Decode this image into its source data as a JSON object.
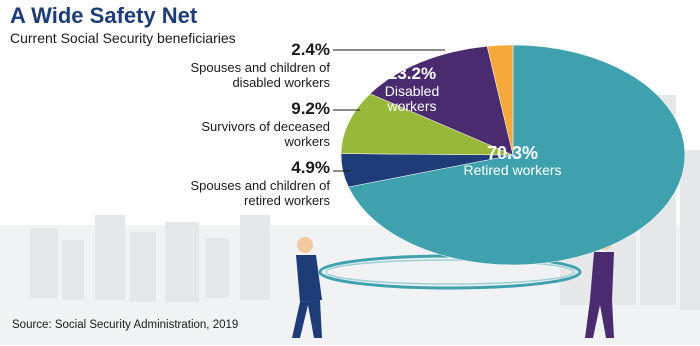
{
  "chart_data": {
    "type": "pie",
    "title": "A Wide Safety Net",
    "subtitle": "Current Social Security beneficiaries",
    "source": "Source: Social Security Administration, 2019",
    "categories": [
      "Retired workers",
      "Spouses and children of retired workers",
      "Survivors of deceased workers",
      "Disabled workers",
      "Spouses and children of disabled workers"
    ],
    "values": [
      70.3,
      4.9,
      9.2,
      13.2,
      2.4
    ],
    "value_labels": [
      "70.3%",
      "4.9%",
      "9.2%",
      "13.2%",
      "2.4%"
    ],
    "colors": [
      "#3fa1ae",
      "#1d3c78",
      "#98b83a",
      "#4b2b6f",
      "#f5a93a"
    ]
  }
}
